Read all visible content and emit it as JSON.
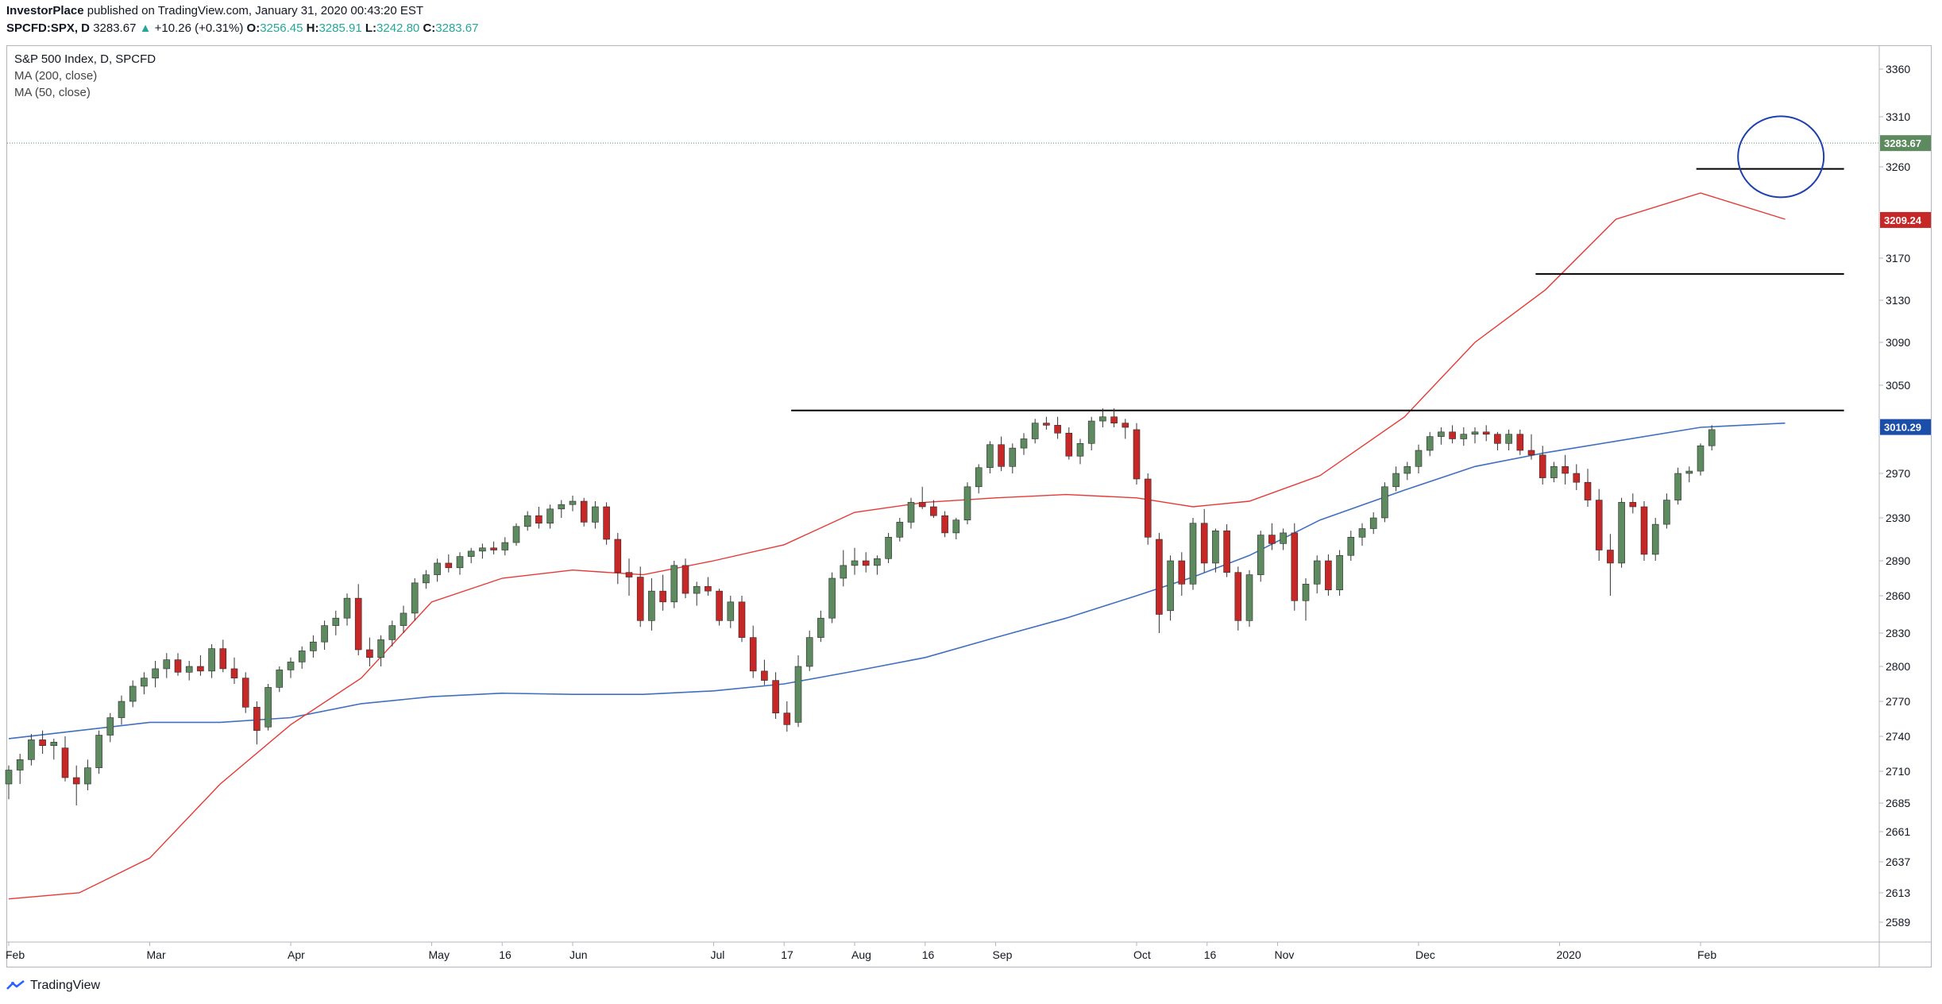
{
  "header": {
    "author": "InvestorPlace",
    "published_text": "published on TradingView.com, January 31, 2020 00:43:20 EST",
    "symbol": "SPCFD:SPX, D",
    "last": "3283.67",
    "change": "+10.26 (+0.31%)",
    "o_label": "O:",
    "o_value": "3256.45",
    "h_label": "H:",
    "h_value": "3285.91",
    "l_label": "L:",
    "l_value": "3242.80",
    "c_label": "C:",
    "c_value": "3283.67"
  },
  "legend": {
    "title": "S&P 500 Index, D, SPCFD",
    "ma200": "MA (200, close)",
    "ma50": "MA (50, close)"
  },
  "footer": {
    "brand": "TradingView"
  },
  "colors": {
    "up": "#26a69a",
    "candle_up_fill": "#5d8a5e",
    "candle_down_fill": "#c62828",
    "ma50": "#e53935",
    "ma200": "#3f6fbf",
    "last_badge": "#5d8a5e",
    "ma50_badge": "#c62828",
    "ma200_badge": "#1a4ea8",
    "circle": "#1e40af",
    "hline": "#000000"
  },
  "chart_data": {
    "type": "candlestick",
    "y_ticks": [
      3360,
      3310,
      3260,
      3210,
      3170,
      3130,
      3090,
      3050,
      3010,
      2970,
      2930,
      2890,
      2860,
      2830,
      2800,
      2770,
      2740,
      2710,
      2685,
      2661,
      2637,
      2613,
      2589
    ],
    "x_ticks": [
      "Feb",
      "Mar",
      "Apr",
      "May",
      "16",
      "Jun",
      "Jul",
      "17",
      "Aug",
      "16",
      "Sep",
      "Oct",
      "16",
      "Nov",
      "Dec",
      "2020",
      "Feb"
    ],
    "price_badges": [
      {
        "name": "last",
        "value": 3283.67,
        "label": "3283.67"
      },
      {
        "name": "ma50",
        "value": 3209.24,
        "label": "3209.24"
      },
      {
        "name": "ma200",
        "value": 3010.29,
        "label": "3010.29"
      }
    ],
    "horizontal_lines": [
      {
        "value": 3026,
        "from_month": 5.55,
        "to_month": 12.95
      },
      {
        "value": 3155,
        "from_month": 10.83,
        "to_month": 12.95
      },
      {
        "value": 3258,
        "from_month": 11.97,
        "to_month": 12.95
      }
    ],
    "circle": {
      "center_month": 12.57,
      "center_value": 3270
    },
    "ma50": [
      [
        0,
        2608
      ],
      [
        0.5,
        2613
      ],
      [
        1.0,
        2640
      ],
      [
        1.5,
        2700
      ],
      [
        2.0,
        2750
      ],
      [
        2.5,
        2790
      ],
      [
        3.0,
        2855
      ],
      [
        3.5,
        2875
      ],
      [
        4.0,
        2882
      ],
      [
        4.5,
        2878
      ],
      [
        5.0,
        2890
      ],
      [
        5.5,
        2905
      ],
      [
        6.0,
        2935
      ],
      [
        6.5,
        2944
      ],
      [
        7.0,
        2948
      ],
      [
        7.5,
        2951
      ],
      [
        8.0,
        2948
      ],
      [
        8.4,
        2940
      ],
      [
        8.8,
        2945
      ],
      [
        9.3,
        2968
      ],
      [
        9.9,
        3020
      ],
      [
        10.4,
        3090
      ],
      [
        10.9,
        3140
      ],
      [
        11.4,
        3210
      ],
      [
        12.0,
        3235
      ],
      [
        12.6,
        3210
      ]
    ],
    "ma200": [
      [
        0,
        2738
      ],
      [
        0.5,
        2745
      ],
      [
        1.0,
        2752
      ],
      [
        1.5,
        2752
      ],
      [
        2.0,
        2756
      ],
      [
        2.5,
        2768
      ],
      [
        3.0,
        2774
      ],
      [
        3.5,
        2777
      ],
      [
        4.0,
        2776
      ],
      [
        4.5,
        2776
      ],
      [
        5.0,
        2779
      ],
      [
        5.5,
        2785
      ],
      [
        6.0,
        2796
      ],
      [
        6.5,
        2808
      ],
      [
        7.0,
        2826
      ],
      [
        7.5,
        2842
      ],
      [
        8.0,
        2860
      ],
      [
        8.4,
        2876
      ],
      [
        8.8,
        2895
      ],
      [
        9.3,
        2928
      ],
      [
        9.9,
        2955
      ],
      [
        10.4,
        2976
      ],
      [
        10.9,
        2988
      ],
      [
        11.4,
        2998
      ],
      [
        12.0,
        3010
      ],
      [
        12.6,
        3014
      ]
    ],
    "candles": [
      [
        0.0,
        2700,
        2715,
        2688,
        2711
      ],
      [
        0.08,
        2711,
        2725,
        2700,
        2720
      ],
      [
        0.16,
        2720,
        2742,
        2715,
        2737
      ],
      [
        0.24,
        2737,
        2745,
        2725,
        2732
      ],
      [
        0.32,
        2732,
        2738,
        2720,
        2735
      ],
      [
        0.4,
        2730,
        2740,
        2702,
        2705
      ],
      [
        0.48,
        2705,
        2715,
        2683,
        2700
      ],
      [
        0.56,
        2700,
        2720,
        2695,
        2713
      ],
      [
        0.64,
        2713,
        2745,
        2708,
        2741
      ],
      [
        0.72,
        2741,
        2760,
        2735,
        2756
      ],
      [
        0.8,
        2756,
        2775,
        2750,
        2770
      ],
      [
        0.88,
        2770,
        2788,
        2765,
        2783
      ],
      [
        0.96,
        2783,
        2795,
        2776,
        2790
      ],
      [
        1.04,
        2790,
        2805,
        2782,
        2798
      ],
      [
        1.12,
        2798,
        2812,
        2790,
        2806
      ],
      [
        1.2,
        2806,
        2812,
        2792,
        2795
      ],
      [
        1.28,
        2795,
        2805,
        2788,
        2800
      ],
      [
        1.36,
        2800,
        2810,
        2792,
        2796
      ],
      [
        1.44,
        2796,
        2820,
        2790,
        2816
      ],
      [
        1.52,
        2816,
        2824,
        2795,
        2798
      ],
      [
        1.6,
        2798,
        2808,
        2785,
        2790
      ],
      [
        1.68,
        2790,
        2795,
        2760,
        2765
      ],
      [
        1.76,
        2765,
        2770,
        2733,
        2745
      ],
      [
        1.84,
        2748,
        2785,
        2745,
        2782
      ],
      [
        1.92,
        2782,
        2800,
        2778,
        2797
      ],
      [
        2.0,
        2797,
        2808,
        2790,
        2804
      ],
      [
        2.08,
        2804,
        2818,
        2798,
        2814
      ],
      [
        2.16,
        2814,
        2828,
        2808,
        2822
      ],
      [
        2.24,
        2822,
        2840,
        2815,
        2836
      ],
      [
        2.32,
        2836,
        2848,
        2828,
        2842
      ],
      [
        2.4,
        2842,
        2862,
        2836,
        2858
      ],
      [
        2.48,
        2858,
        2870,
        2810,
        2815
      ],
      [
        2.56,
        2815,
        2826,
        2800,
        2808
      ],
      [
        2.64,
        2808,
        2828,
        2800,
        2824
      ],
      [
        2.72,
        2824,
        2840,
        2818,
        2836
      ],
      [
        2.8,
        2836,
        2852,
        2830,
        2846
      ],
      [
        2.88,
        2846,
        2875,
        2840,
        2871
      ],
      [
        2.96,
        2871,
        2882,
        2866,
        2878
      ],
      [
        3.04,
        2878,
        2892,
        2872,
        2888
      ],
      [
        3.12,
        2888,
        2896,
        2880,
        2884
      ],
      [
        3.2,
        2884,
        2898,
        2878,
        2894
      ],
      [
        3.28,
        2894,
        2902,
        2888,
        2899
      ],
      [
        3.36,
        2899,
        2906,
        2892,
        2902
      ],
      [
        3.44,
        2902,
        2908,
        2896,
        2900
      ],
      [
        3.52,
        2900,
        2912,
        2895,
        2907
      ],
      [
        3.6,
        2907,
        2925,
        2904,
        2922
      ],
      [
        3.68,
        2922,
        2936,
        2918,
        2932
      ],
      [
        3.76,
        2932,
        2940,
        2920,
        2925
      ],
      [
        3.84,
        2925,
        2942,
        2920,
        2938
      ],
      [
        3.92,
        2938,
        2946,
        2930,
        2942
      ],
      [
        4.0,
        2942,
        2950,
        2936,
        2945
      ],
      [
        4.08,
        2945,
        2948,
        2922,
        2926
      ],
      [
        4.16,
        2926,
        2945,
        2920,
        2940
      ],
      [
        4.24,
        2940,
        2944,
        2905,
        2910
      ],
      [
        4.32,
        2910,
        2916,
        2870,
        2880
      ],
      [
        4.4,
        2880,
        2892,
        2860,
        2876
      ],
      [
        4.48,
        2876,
        2885,
        2835,
        2840
      ],
      [
        4.56,
        2840,
        2875,
        2832,
        2864
      ],
      [
        4.64,
        2864,
        2878,
        2848,
        2855
      ],
      [
        4.72,
        2855,
        2890,
        2850,
        2886
      ],
      [
        4.8,
        2886,
        2892,
        2858,
        2862
      ],
      [
        4.88,
        2862,
        2872,
        2852,
        2868
      ],
      [
        4.96,
        2868,
        2876,
        2860,
        2864
      ],
      [
        5.04,
        2864,
        2866,
        2836,
        2840
      ],
      [
        5.12,
        2840,
        2860,
        2834,
        2855
      ],
      [
        5.2,
        2855,
        2860,
        2822,
        2826
      ],
      [
        5.28,
        2826,
        2836,
        2790,
        2796
      ],
      [
        5.36,
        2796,
        2806,
        2784,
        2788
      ],
      [
        5.44,
        2788,
        2795,
        2755,
        2760
      ],
      [
        5.52,
        2760,
        2770,
        2744,
        2750
      ],
      [
        5.6,
        2752,
        2810,
        2748,
        2800
      ],
      [
        5.68,
        2800,
        2832,
        2796,
        2826
      ],
      [
        5.76,
        2826,
        2848,
        2822,
        2842
      ],
      [
        5.84,
        2842,
        2880,
        2838,
        2875
      ],
      [
        5.92,
        2875,
        2900,
        2868,
        2886
      ],
      [
        6.0,
        2886,
        2902,
        2878,
        2890
      ],
      [
        6.08,
        2890,
        2898,
        2880,
        2886
      ],
      [
        6.16,
        2886,
        2895,
        2878,
        2892
      ],
      [
        6.24,
        2892,
        2916,
        2888,
        2912
      ],
      [
        6.32,
        2912,
        2930,
        2908,
        2926
      ],
      [
        6.4,
        2926,
        2948,
        2920,
        2944
      ],
      [
        6.48,
        2944,
        2958,
        2938,
        2940
      ],
      [
        6.56,
        2940,
        2946,
        2930,
        2932
      ],
      [
        6.64,
        2932,
        2936,
        2912,
        2916
      ],
      [
        6.72,
        2916,
        2930,
        2910,
        2928
      ],
      [
        6.8,
        2928,
        2962,
        2924,
        2958
      ],
      [
        6.88,
        2958,
        2978,
        2952,
        2975
      ],
      [
        6.96,
        2975,
        2998,
        2970,
        2995
      ],
      [
        7.04,
        2995,
        3002,
        2972,
        2976
      ],
      [
        7.12,
        2976,
        2996,
        2970,
        2992
      ],
      [
        7.2,
        2992,
        3005,
        2986,
        3000
      ],
      [
        7.28,
        3000,
        3018,
        2996,
        3014
      ],
      [
        7.36,
        3014,
        3020,
        3008,
        3012
      ],
      [
        7.44,
        3012,
        3020,
        3000,
        3005
      ],
      [
        7.52,
        3005,
        3010,
        2982,
        2985
      ],
      [
        7.6,
        2985,
        3000,
        2978,
        2996
      ],
      [
        7.68,
        2996,
        3020,
        2990,
        3016
      ],
      [
        7.76,
        3016,
        3028,
        3010,
        3020
      ],
      [
        7.84,
        3020,
        3028,
        3010,
        3014
      ],
      [
        7.92,
        3014,
        3018,
        3000,
        3010
      ],
      [
        8.0,
        3008,
        3014,
        2960,
        2965
      ],
      [
        8.08,
        2965,
        2970,
        2905,
        2912
      ],
      [
        8.16,
        2910,
        2916,
        2830,
        2845
      ],
      [
        8.24,
        2848,
        2895,
        2840,
        2890
      ],
      [
        8.32,
        2890,
        2898,
        2860,
        2870
      ],
      [
        8.4,
        2870,
        2930,
        2865,
        2925
      ],
      [
        8.48,
        2925,
        2938,
        2880,
        2888
      ],
      [
        8.56,
        2888,
        2920,
        2880,
        2918
      ],
      [
        8.64,
        2918,
        2924,
        2876,
        2880
      ],
      [
        8.72,
        2880,
        2885,
        2832,
        2840
      ],
      [
        8.8,
        2840,
        2882,
        2835,
        2878
      ],
      [
        8.88,
        2878,
        2918,
        2872,
        2914
      ],
      [
        8.96,
        2914,
        2925,
        2900,
        2906
      ],
      [
        9.04,
        2906,
        2920,
        2900,
        2916
      ],
      [
        9.12,
        2916,
        2925,
        2848,
        2856
      ],
      [
        9.2,
        2856,
        2875,
        2840,
        2870
      ],
      [
        9.28,
        2870,
        2895,
        2862,
        2890
      ],
      [
        9.36,
        2890,
        2896,
        2860,
        2865
      ],
      [
        9.44,
        2865,
        2900,
        2860,
        2895
      ],
      [
        9.52,
        2895,
        2918,
        2890,
        2912
      ],
      [
        9.6,
        2912,
        2925,
        2904,
        2920
      ],
      [
        9.68,
        2920,
        2935,
        2915,
        2930
      ],
      [
        9.76,
        2930,
        2962,
        2926,
        2958
      ],
      [
        9.84,
        2958,
        2976,
        2954,
        2970
      ],
      [
        9.92,
        2970,
        2980,
        2964,
        2976
      ],
      [
        10.0,
        2976,
        2995,
        2970,
        2990
      ],
      [
        10.08,
        2990,
        3006,
        2985,
        3002
      ],
      [
        10.16,
        3002,
        3010,
        2995,
        3006
      ],
      [
        10.24,
        3006,
        3012,
        2996,
        3000
      ],
      [
        10.32,
        3000,
        3010,
        2994,
        3004
      ],
      [
        10.4,
        3004,
        3010,
        2996,
        3006
      ],
      [
        10.48,
        3006,
        3012,
        2998,
        3004
      ],
      [
        10.56,
        3004,
        3006,
        2990,
        2996
      ],
      [
        10.64,
        2996,
        3008,
        2990,
        3004
      ],
      [
        10.72,
        3004,
        3008,
        2986,
        2990
      ],
      [
        10.8,
        2990,
        3004,
        2982,
        2986
      ],
      [
        10.88,
        2986,
        2994,
        2960,
        2966
      ],
      [
        10.96,
        2966,
        2980,
        2962,
        2976
      ],
      [
        11.04,
        2976,
        2986,
        2960,
        2970
      ],
      [
        11.12,
        2970,
        2978,
        2955,
        2962
      ],
      [
        11.2,
        2962,
        2974,
        2940,
        2946
      ],
      [
        11.28,
        2946,
        2956,
        2890,
        2900
      ],
      [
        11.36,
        2900,
        2915,
        2860,
        2888
      ],
      [
        11.44,
        2888,
        2948,
        2884,
        2944
      ],
      [
        11.52,
        2944,
        2952,
        2934,
        2940
      ],
      [
        11.6,
        2940,
        2945,
        2890,
        2896
      ],
      [
        11.68,
        2896,
        2930,
        2890,
        2924
      ],
      [
        11.76,
        2924,
        2952,
        2920,
        2946
      ],
      [
        11.84,
        2946,
        2975,
        2942,
        2970
      ],
      [
        11.92,
        2970,
        2976,
        2962,
        2972
      ],
      [
        12.0,
        2972,
        2996,
        2968,
        2994
      ],
      [
        12.08,
        2994,
        3012,
        2990,
        3008
      ]
    ]
  }
}
